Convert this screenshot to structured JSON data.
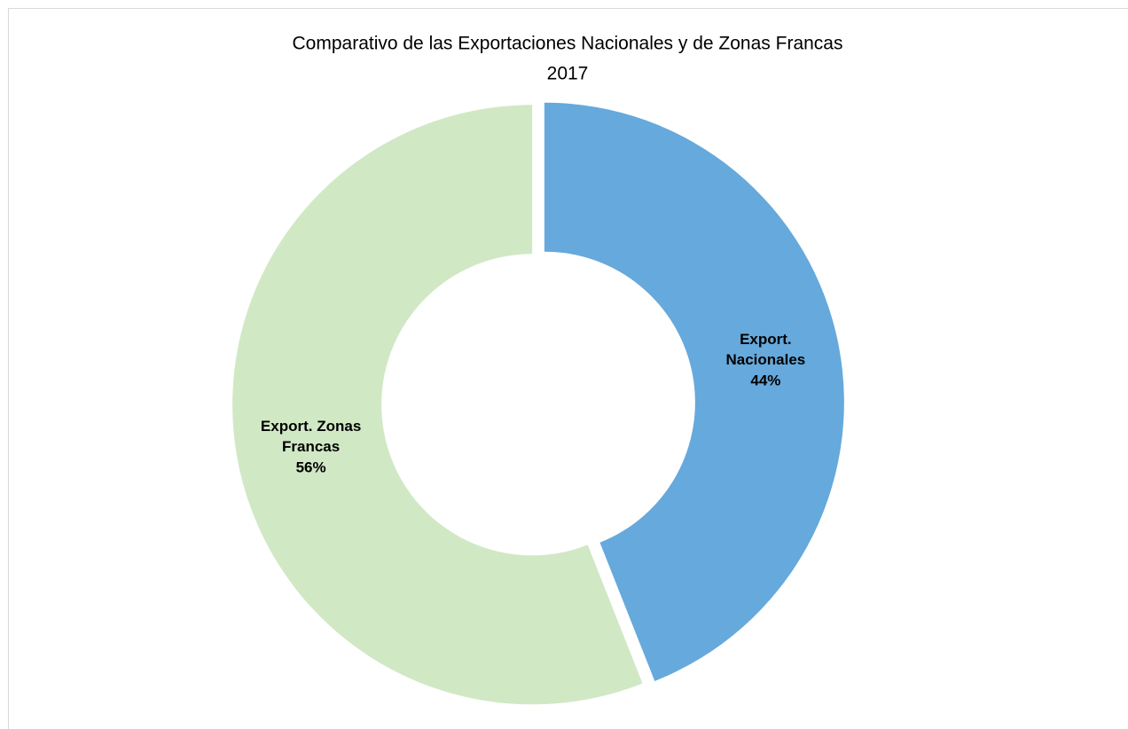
{
  "chart_data": {
    "type": "donut",
    "title": "Comparativo de las Exportaciones Nacionales y de Zonas Francas",
    "subtitle": "2017",
    "categories": [
      "Export. Nacionales",
      "Export. Zonas Francas"
    ],
    "values": [
      44,
      56
    ],
    "value_labels": [
      "44%",
      "56%"
    ],
    "colors": [
      "#66a9dc",
      "#d1e8c5"
    ]
  }
}
